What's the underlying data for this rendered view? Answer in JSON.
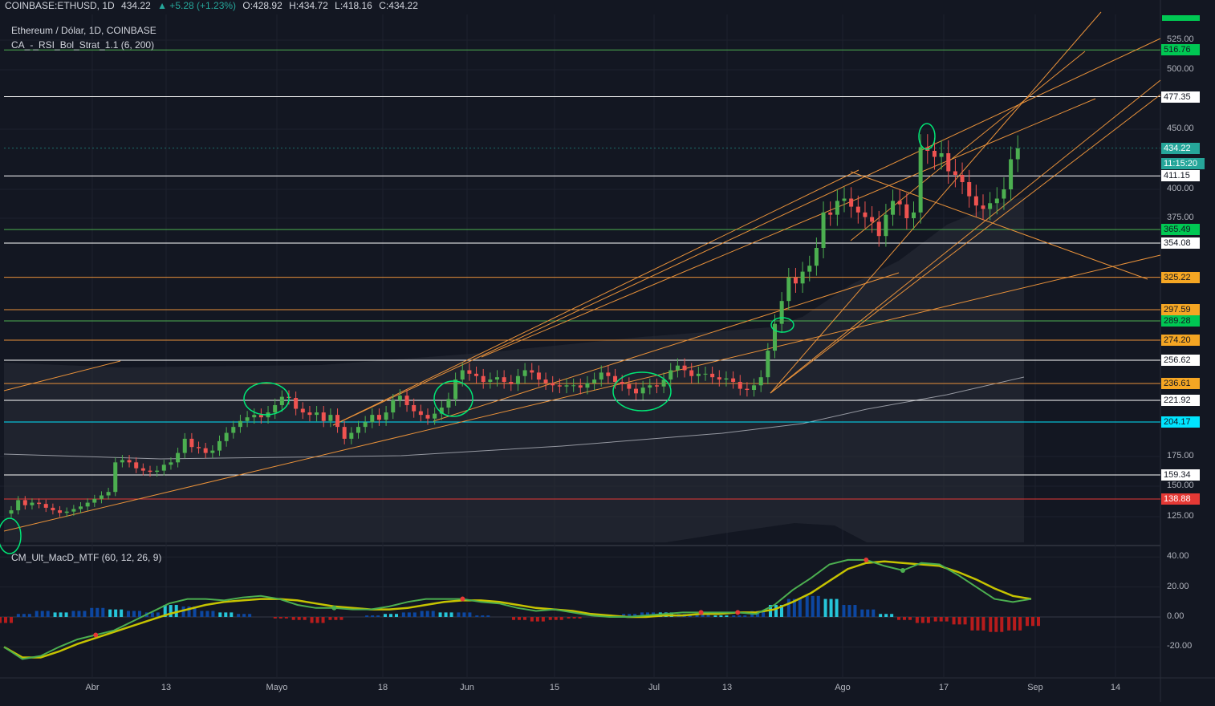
{
  "header": {
    "symbol": "COINBASE:ETHUSD, 1D",
    "last": "434.22",
    "change": "▲ +5.28 (+1.23%)",
    "open": "O:428.92",
    "high": "H:434.72",
    "low": "L:418.16",
    "close": "C:434.22"
  },
  "legend": {
    "title": "Ethereum / Dólar, 1D, COINBASE",
    "indicator": "CA_-_RSI_Bol_Strat_1.1 (6, 200)",
    "macd": "CM_Ult_MacD_MTF (60, 12, 26, 9)"
  },
  "colors": {
    "background": "#131722",
    "bull": "#26a69a",
    "bear": "#ef5350",
    "bull_candle": "#4caf50",
    "trendline": "#e8913a",
    "green_level": "#4caf50",
    "white_level": "#ffffff",
    "cyan_level": "#00e5ff",
    "red_level": "#e53935",
    "annotation": "#00e676"
  },
  "chart_data": [
    {
      "type": "candlestick",
      "title": "Ethereum / Dólar, 1D, COINBASE",
      "y_ticks": [
        "525.00",
        "500.00",
        "450.00",
        "400.00",
        "375.00",
        "175.00",
        "150.00",
        "125.00"
      ],
      "x_ticks": [
        "Abr",
        "13",
        "Mayo",
        "18",
        "Jun",
        "15",
        "Jul",
        "13",
        "Ago",
        "17",
        "Sep",
        "14"
      ],
      "ylim": [
        105,
        545
      ],
      "horizontal_levels": [
        {
          "value": "516.76",
          "color": "green"
        },
        {
          "value": "477.35",
          "color": "white"
        },
        {
          "value": "434.22",
          "color": "current"
        },
        {
          "value": "411.15",
          "color": "white"
        },
        {
          "value": "365.49",
          "color": "green"
        },
        {
          "value": "354.08",
          "color": "white"
        },
        {
          "value": "325.22",
          "color": "orange"
        },
        {
          "value": "297.59",
          "color": "orange"
        },
        {
          "value": "289.28",
          "color": "green"
        },
        {
          "value": "274.20",
          "color": "orange"
        },
        {
          "value": "256.62",
          "color": "white"
        },
        {
          "value": "236.61",
          "color": "orange"
        },
        {
          "value": "221.92",
          "color": "white"
        },
        {
          "value": "204.17",
          "color": "cyan"
        },
        {
          "value": "159.34",
          "color": "white"
        },
        {
          "value": "138.88",
          "color": "red"
        }
      ],
      "countdown": "11:15:20",
      "closes": [
        130,
        138,
        134,
        136,
        135,
        132,
        130,
        128,
        129,
        131,
        133,
        136,
        139,
        142,
        145,
        170,
        172,
        170,
        165,
        163,
        162,
        163,
        168,
        170,
        178,
        190,
        183,
        182,
        178,
        180,
        188,
        195,
        200,
        205,
        208,
        210,
        208,
        212,
        218,
        225,
        224,
        215,
        212,
        210,
        212,
        205,
        210,
        200,
        190,
        195,
        200,
        204,
        210,
        206,
        212,
        222,
        226,
        218,
        213,
        210,
        207,
        211,
        216,
        223,
        240,
        248,
        245,
        243,
        238,
        240,
        242,
        238,
        236,
        243,
        248,
        246,
        240,
        237,
        235,
        234,
        235,
        235,
        233,
        237,
        240,
        246,
        243,
        238,
        236,
        232,
        228,
        233,
        235,
        234,
        240,
        248,
        252,
        248,
        243,
        245,
        245,
        242,
        240,
        241,
        238,
        232,
        231,
        235,
        242,
        265,
        287,
        305,
        325,
        320,
        330,
        335,
        350,
        380,
        378,
        390,
        392,
        385,
        380,
        376,
        372,
        360,
        378,
        390,
        387,
        375,
        380,
        435,
        432,
        427,
        430,
        415,
        412,
        406,
        394,
        386,
        383,
        388,
        392,
        400,
        425,
        434
      ]
    },
    {
      "type": "line",
      "title": "CM_Ult_MacD_MTF (60, 12, 26, 9)",
      "y_ticks": [
        "40.00",
        "20.00",
        "0.00",
        "-20.00"
      ],
      "ylim": [
        -38,
        48
      ],
      "series": [
        {
          "values": [
            -20,
            -28,
            -26,
            -20,
            -15,
            -12,
            -9,
            -3,
            3,
            9,
            12,
            12,
            11,
            13,
            14,
            12,
            8,
            6,
            6,
            5,
            5,
            7,
            10,
            12,
            12,
            12,
            10,
            9,
            6,
            4,
            5,
            3,
            1,
            0,
            0,
            1,
            2,
            3,
            3,
            3,
            3,
            2,
            8,
            18,
            26,
            35,
            38,
            38,
            34,
            31,
            36,
            35,
            28,
            20,
            12,
            10,
            12
          ]
        },
        {
          "values": [
            -20,
            -27,
            -27,
            -23,
            -18,
            -14,
            -10,
            -6,
            -2,
            2,
            5,
            8,
            10,
            11,
            12,
            12,
            11,
            9,
            7,
            6,
            5,
            5,
            6,
            8,
            10,
            11,
            11,
            10,
            8,
            6,
            5,
            4,
            2,
            1,
            0,
            0,
            1,
            1,
            2,
            2,
            3,
            3,
            5,
            10,
            16,
            24,
            32,
            36,
            37,
            36,
            35,
            34,
            30,
            25,
            19,
            14,
            12
          ]
        },
        {
          "values": [
            -4,
            2,
            4,
            3,
            4,
            6,
            5,
            4,
            3,
            8,
            7,
            4,
            3,
            2,
            0,
            -1,
            -2,
            -4,
            -2,
            0,
            1,
            2,
            3,
            4,
            3,
            3,
            1,
            0,
            -2,
            -3,
            -2,
            -1,
            0,
            1,
            2,
            3,
            3,
            2,
            2,
            1,
            1,
            4,
            8,
            12,
            14,
            12,
            8,
            5,
            2,
            -2,
            -4,
            -3,
            -5,
            -9,
            -10,
            -9,
            -6
          ]
        }
      ]
    }
  ]
}
